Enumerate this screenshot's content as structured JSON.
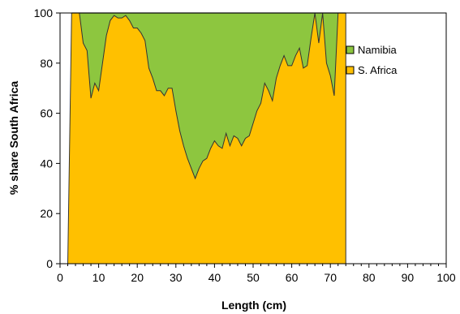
{
  "chart_data": {
    "type": "area",
    "title": "",
    "xlabel": "Length (cm)",
    "ylabel": "% share South Africa",
    "xlim": [
      0,
      100
    ],
    "ylim": [
      0,
      100
    ],
    "x_ticks": [
      0,
      10,
      20,
      30,
      40,
      50,
      60,
      70,
      80,
      90,
      100
    ],
    "y_ticks": [
      0,
      20,
      40,
      60,
      80,
      100
    ],
    "grid": false,
    "legend_position": "right",
    "stacking": "percent",
    "series": [
      {
        "name": "Namibia",
        "color": "#8dc63f",
        "values_note": "stacked remainder to 100% over x = 3 to 74",
        "x_start": 3,
        "x_end": 74
      },
      {
        "name": "S. Africa",
        "color": "#ffc000",
        "x": [
          2,
          3,
          4,
          5,
          6,
          7,
          8,
          9,
          10,
          11,
          12,
          13,
          14,
          15,
          16,
          17,
          18,
          19,
          20,
          21,
          22,
          23,
          24,
          25,
          26,
          27,
          28,
          29,
          30,
          31,
          32,
          33,
          34,
          35,
          36,
          37,
          38,
          39,
          40,
          41,
          42,
          43,
          44,
          45,
          46,
          47,
          48,
          49,
          50,
          51,
          52,
          53,
          54,
          55,
          56,
          57,
          58,
          59,
          60,
          61,
          62,
          63,
          64,
          65,
          66,
          67,
          68,
          69,
          70,
          71,
          72,
          73,
          74
        ],
        "values": [
          0,
          100,
          100,
          100,
          88,
          85,
          66,
          72,
          69,
          80,
          91,
          97,
          99,
          98,
          98,
          99,
          97,
          94,
          94,
          92,
          89,
          78,
          74,
          69,
          69,
          67,
          70,
          70,
          61,
          53,
          47,
          42,
          38,
          34,
          38,
          41,
          42,
          46,
          49,
          47,
          46,
          52,
          47,
          51,
          50,
          47,
          50,
          51,
          56,
          61,
          64,
          72,
          69,
          65,
          74,
          79,
          83,
          79,
          79,
          83,
          86,
          78,
          79,
          90,
          100,
          88,
          100,
          80,
          75,
          67,
          100,
          100,
          100
        ]
      }
    ]
  }
}
